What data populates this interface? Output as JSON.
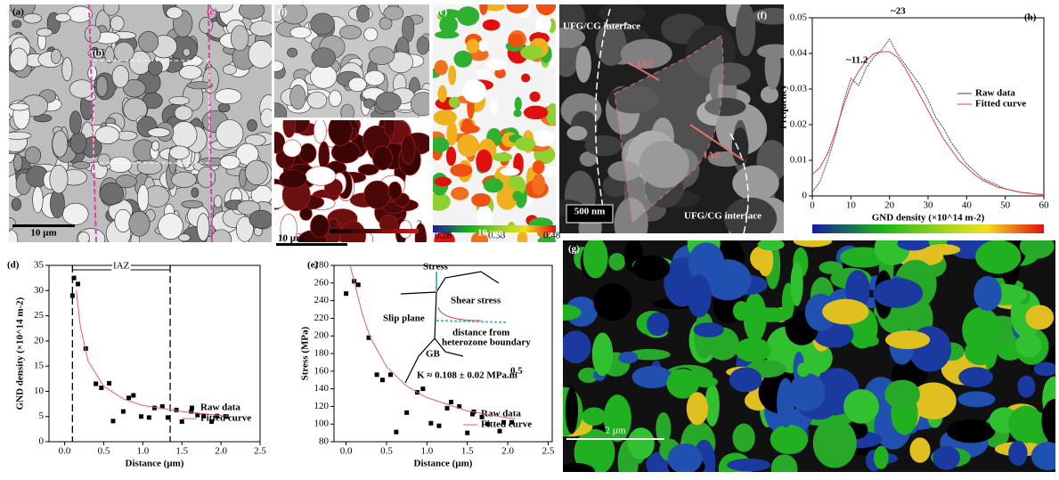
{
  "labels": {
    "a": "(a)",
    "b": "(b)",
    "c_box": "(c)",
    "i": "(i)",
    "c": "(c)",
    "f": "(f)",
    "g": "(g)"
  },
  "scale_bars": {
    "a": "10 µm",
    "i": "10 µm",
    "c": "10 µm",
    "f": "500 nm",
    "g": "2 µm"
  },
  "colorbar_i": [
    "0",
    "2"
  ],
  "colorbar_c": [
    "0.28",
    "0.38",
    "0.48"
  ],
  "tem": {
    "interface_top": "UFG/CG interface",
    "interface_bottom": "UFG/CG interface",
    "iaz_1": "IAZ",
    "iaz_2": "IAZ"
  },
  "chart_data": [
    {
      "type": "scatter",
      "panel_label": "(d)",
      "x_label": "Distance (µm)",
      "y_label": "GND density (×10^14 m-2)",
      "annotation": "IAZ",
      "vlines": [
        0.1,
        1.35
      ],
      "series": [
        {
          "name": "Raw data",
          "color": "#000000",
          "style": "markers",
          "x": [
            0.1,
            0.12,
            0.17,
            0.27,
            0.4,
            0.47,
            0.57,
            0.62,
            0.75,
            0.82,
            0.88,
            0.98,
            1.08,
            1.15,
            1.25,
            1.32,
            1.43,
            1.5,
            1.62,
            1.7,
            1.78,
            1.88,
            1.95,
            2.07
          ],
          "values": [
            29,
            32.5,
            31.3,
            18.5,
            11.5,
            10.7,
            11.6,
            4.1,
            6,
            8.7,
            9.2,
            5,
            4.8,
            6.7,
            7,
            4.8,
            6.3,
            4,
            6,
            5.3,
            5.1,
            4,
            5.1,
            5
          ]
        },
        {
          "name": "Fitted curve",
          "color": "#e06060",
          "style": "line",
          "x": [
            0.15,
            0.2,
            0.3,
            0.5,
            0.75,
            1,
            1.5,
            2,
            2.1
          ],
          "values": [
            30,
            23,
            16,
            11,
            8.5,
            7.2,
            6,
            5.2,
            5.1
          ]
        }
      ],
      "xlim": [
        -0.2,
        2.5
      ],
      "xticks": [
        {
          "value": 0,
          "label": "0.0"
        },
        0.5,
        {
          "value": 1,
          "label": "1.0"
        },
        1.5,
        {
          "value": 2,
          "label": "2.0"
        },
        2.5
      ],
      "ylim": [
        0,
        35
      ],
      "yticks": [
        0,
        5,
        10,
        15,
        20,
        25,
        30,
        35
      ]
    },
    {
      "type": "scatter",
      "panel_label": "(e)",
      "x_label": "Distance (µm)",
      "y_label": "Stress (MPa)",
      "inset": {
        "stress": "Stress",
        "shear": "Shear stress",
        "slip": "Slip plane",
        "distance_1": "distance from",
        "distance_2": "heterozone boundary",
        "gb": "GB"
      },
      "k_label": "K ≈ 0.108 ± 0.02 MPa.m",
      "k_exp": "0.5",
      "series": [
        {
          "name": "Raw data",
          "color": "#000000",
          "style": "markers",
          "x": [
            0,
            0.1,
            0.15,
            0.28,
            0.38,
            0.45,
            0.55,
            0.62,
            0.75,
            0.88,
            0.95,
            1.05,
            1.15,
            1.25,
            1.3,
            1.4,
            1.5,
            1.58,
            1.68,
            1.75,
            1.9,
            1.95,
            2.05
          ],
          "values": [
            248,
            262,
            258,
            198,
            156,
            150,
            156,
            91,
            113,
            136,
            140,
            101,
            98,
            118,
            125,
            120,
            90,
            114,
            108,
            100,
            92,
            102,
            102
          ]
        },
        {
          "name": "Fitted curve",
          "color": "#e06060",
          "style": "line",
          "x": [
            0.05,
            0.1,
            0.2,
            0.3,
            0.5,
            0.75,
            1,
            1.5,
            2,
            2.1
          ],
          "values": [
            280,
            262,
            225,
            198,
            165,
            143,
            130,
            115,
            107,
            106
          ]
        }
      ],
      "xlim": [
        -0.15,
        2.55
      ],
      "xticks": [
        {
          "value": 0,
          "label": "0.0"
        },
        0.5,
        {
          "value": 1,
          "label": "1.0"
        },
        1.5,
        {
          "value": 2,
          "label": "2.0"
        },
        2.5
      ],
      "ylim": [
        80,
        280
      ],
      "yticks": [
        80,
        100,
        120,
        140,
        160,
        180,
        200,
        220,
        240,
        260,
        280
      ]
    },
    {
      "type": "line",
      "panel_label": "(h)",
      "x_label": "GND density  (×10^14 m-2)",
      "y_label": "Frequency",
      "annotations": [
        "~11.2",
        "~23"
      ],
      "series": [
        {
          "name": "Raw data",
          "color": "#444444",
          "style": "line",
          "x": [
            0,
            2,
            4,
            6,
            8,
            10,
            12,
            14,
            16,
            18,
            20,
            22,
            24,
            26,
            28,
            30,
            32,
            34,
            36,
            38,
            40,
            42,
            44,
            46,
            48,
            50,
            52,
            54,
            56,
            58,
            60
          ],
          "values": [
            0.001,
            0.004,
            0.01,
            0.017,
            0.026,
            0.033,
            0.031,
            0.036,
            0.039,
            0.041,
            0.044,
            0.04,
            0.037,
            0.034,
            0.031,
            0.027,
            0.022,
            0.019,
            0.015,
            0.012,
            0.009,
            0.007,
            0.005,
            0.004,
            0.003,
            0.002,
            0.0015,
            0.001,
            0.0008,
            0.0005,
            0.0004
          ]
        },
        {
          "name": "Fitted curve",
          "color": "#e04040",
          "style": "line",
          "x": [
            0,
            2,
            4,
            6,
            8,
            10,
            12,
            14,
            16,
            18,
            20,
            22,
            24,
            26,
            28,
            30,
            32,
            34,
            36,
            38,
            40,
            42,
            44,
            46,
            48,
            50,
            52,
            54,
            56,
            58,
            60
          ],
          "values": [
            0.006,
            0.008,
            0.012,
            0.018,
            0.025,
            0.031,
            0.035,
            0.038,
            0.04,
            0.0405,
            0.0405,
            0.039,
            0.036,
            0.032,
            0.028,
            0.024,
            0.02,
            0.016,
            0.013,
            0.01,
            0.008,
            0.006,
            0.0045,
            0.0035,
            0.0025,
            0.002,
            0.0015,
            0.001,
            0.0008,
            0.0005,
            0.0004
          ]
        }
      ],
      "xlim": [
        0,
        60
      ],
      "xticks": [
        0,
        10,
        20,
        30,
        40,
        50,
        60
      ],
      "ylim": [
        0,
        0.05
      ],
      "yticks": [
        0,
        0.01,
        0.02,
        0.03,
        0.04,
        0.05
      ]
    }
  ]
}
